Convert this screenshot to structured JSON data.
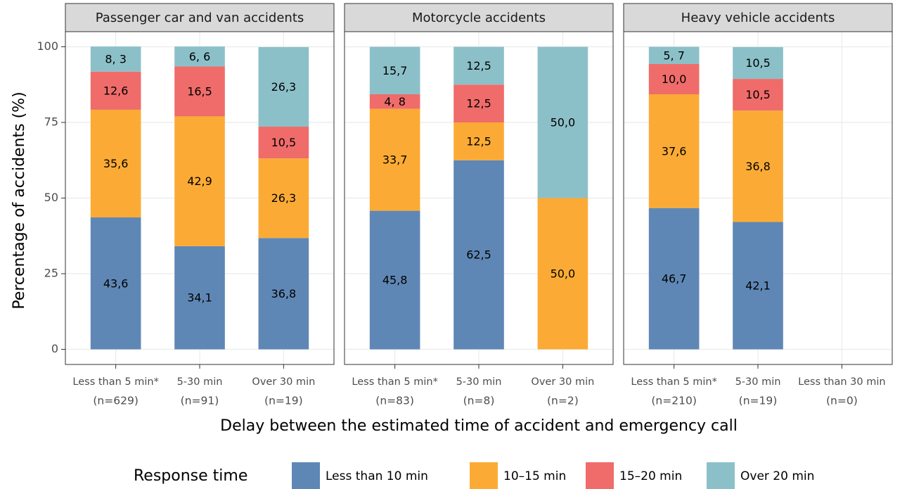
{
  "ylabel": "Percentage of accidents (%)",
  "xlabel": "Delay between the estimated time of accident and emergency call",
  "legend_title": "Response time",
  "series": [
    {
      "name": "Less than 10 min",
      "color": "#5f87b5"
    },
    {
      "name": "10–15 min",
      "color": "#fbab35"
    },
    {
      "name": "15–20 min",
      "color": "#ef6c6a"
    },
    {
      "name": "Over 20 min",
      "color": "#8cc0c9"
    }
  ],
  "ylim": [
    -5,
    105
  ],
  "yticks": [
    0,
    25,
    50,
    75,
    100
  ],
  "grid": true,
  "chart_data": [
    {
      "type": "stacked_bar",
      "title": "Passenger car and van accidents",
      "categories": [
        "Less than 5 min*",
        "5-30 min",
        "Over 30 min"
      ],
      "n_labels": [
        "(n=629)",
        "(n=91)",
        "(n=19)"
      ],
      "series": [
        {
          "values": [
            43.6,
            34.1,
            36.8
          ],
          "value_labels": [
            "43,6",
            "34,1",
            "36,8"
          ]
        },
        {
          "values": [
            35.6,
            42.9,
            26.3
          ],
          "value_labels": [
            "35,6",
            "42,9",
            "26,3"
          ]
        },
        {
          "values": [
            12.6,
            16.5,
            10.5
          ],
          "value_labels": [
            "12,6",
            "16,5",
            "10,5"
          ]
        },
        {
          "values": [
            8.3,
            6.6,
            26.3
          ],
          "value_labels": [
            "8, 3",
            "6, 6",
            "26,3"
          ]
        }
      ]
    },
    {
      "type": "stacked_bar",
      "title": "Motorcycle accidents",
      "categories": [
        "Less than 5 min*",
        "5-30 min",
        "Over 30 min"
      ],
      "n_labels": [
        "(n=83)",
        "(n=8)",
        "(n=2)"
      ],
      "series": [
        {
          "values": [
            45.8,
            62.5,
            0
          ],
          "value_labels": [
            "45,8",
            "62,5",
            null
          ]
        },
        {
          "values": [
            33.7,
            12.5,
            50.0
          ],
          "value_labels": [
            "33,7",
            "12,5",
            "50,0"
          ]
        },
        {
          "values": [
            4.8,
            12.5,
            0
          ],
          "value_labels": [
            "4, 8",
            "12,5",
            null
          ]
        },
        {
          "values": [
            15.7,
            12.5,
            50.0
          ],
          "value_labels": [
            "15,7",
            "12,5",
            "50,0"
          ]
        }
      ]
    },
    {
      "type": "stacked_bar",
      "title": "Heavy vehicle accidents",
      "categories": [
        "Less than 5 min*",
        "5-30 min",
        "Less than 30 min"
      ],
      "n_labels": [
        "(n=210)",
        "(n=19)",
        "(n=0)"
      ],
      "series": [
        {
          "values": [
            46.7,
            42.1,
            0
          ],
          "value_labels": [
            "46,7",
            "42,1",
            null
          ]
        },
        {
          "values": [
            37.6,
            36.8,
            0
          ],
          "value_labels": [
            "37,6",
            "36,8",
            null
          ]
        },
        {
          "values": [
            10.0,
            10.5,
            0
          ],
          "value_labels": [
            "10,0",
            "10,5",
            null
          ]
        },
        {
          "values": [
            5.7,
            10.5,
            0
          ],
          "value_labels": [
            "5, 7",
            "10,5",
            null
          ]
        }
      ]
    }
  ]
}
